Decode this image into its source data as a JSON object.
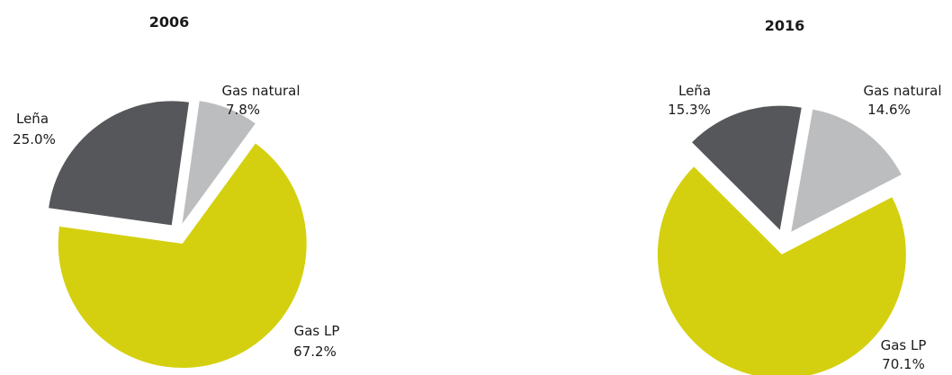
{
  "chart_data": [
    {
      "type": "pie",
      "title": "2006",
      "slices": [
        {
          "label": "Gas natural",
          "value": 7.8,
          "value_label": "7.8%",
          "color": "#bcbdbf"
        },
        {
          "label": "Gas LP",
          "value": 67.2,
          "value_label": "67.2%",
          "color": "#d4d00f"
        },
        {
          "label": "Leña",
          "value": 25.0,
          "value_label": "25.0%",
          "color": "#56575a"
        }
      ]
    },
    {
      "type": "pie",
      "title": "2016",
      "slices": [
        {
          "label": "Gas natural",
          "value": 14.6,
          "value_label": "14.6%",
          "color": "#bcbdbf"
        },
        {
          "label": "Gas LP",
          "value": 70.1,
          "value_label": "70.1%",
          "color": "#d4d00f"
        },
        {
          "label": "Leña",
          "value": 15.3,
          "value_label": "15.3%",
          "color": "#56575a"
        }
      ]
    }
  ]
}
